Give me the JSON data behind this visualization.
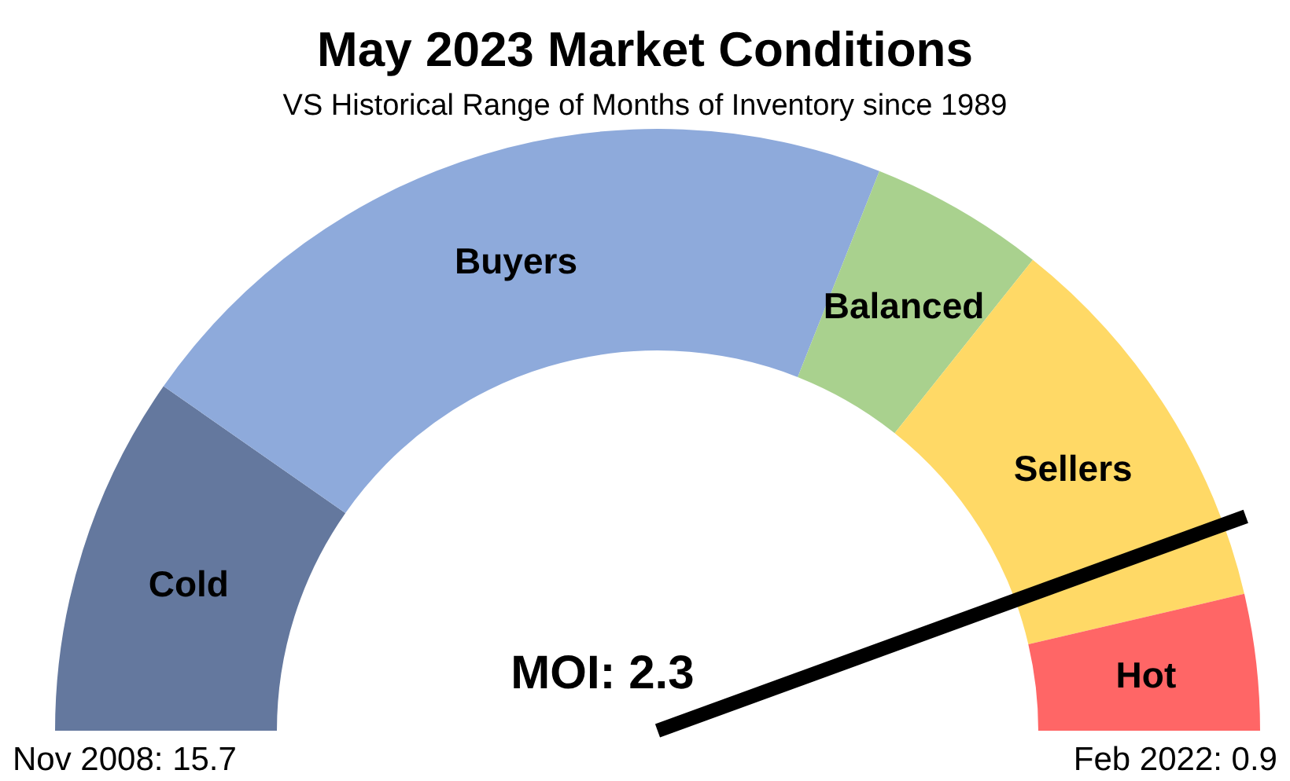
{
  "chart_data": {
    "type": "donut",
    "title": "May 2023 Market Conditions",
    "subtitle": "VS Historical Range of Months of Inventory since 1989",
    "categories": [
      "Cold",
      "Buyers",
      "Balanced",
      "Sellers",
      "Hot"
    ],
    "values": [
      19.4,
      42.6,
      9.4,
      21.3,
      7.3
    ],
    "colors": [
      "#64789e",
      "#8eaadb",
      "#a9d18e",
      "#ffd966",
      "#ff6666"
    ],
    "needle": "Sellers",
    "annotations": [
      "MOI: 2.3",
      "Nov 2008: 15.7",
      "Feb 2022: 0.9"
    ]
  }
}
